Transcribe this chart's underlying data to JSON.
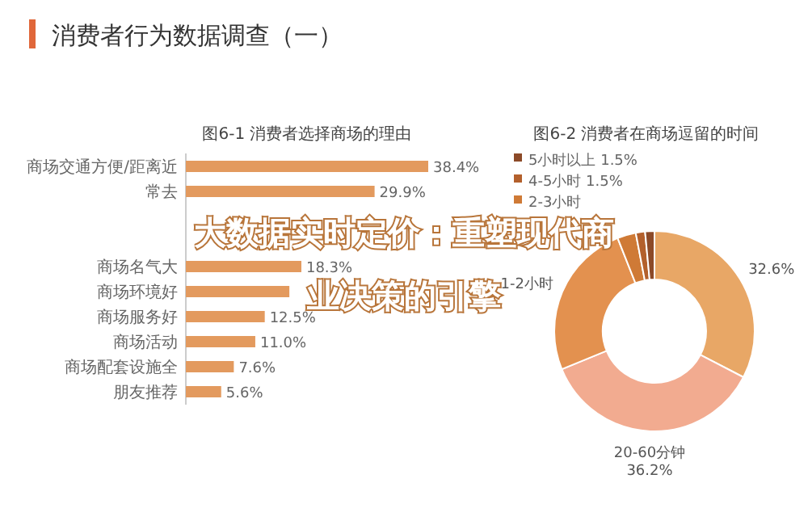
{
  "chart_data": [
    {
      "type": "bar",
      "orientation": "horizontal",
      "title": "图6-1 消费者选择商场的理由",
      "categories": [
        "商场交通方便/距离近",
        "常去",
        null,
        null,
        "商场名气大",
        "商场环境好",
        "商场服务好",
        "商场活动",
        "商场配套设施全",
        "朋友推荐"
      ],
      "values": [
        38.4,
        29.9,
        null,
        null,
        18.3,
        16.4,
        12.5,
        11.0,
        7.6,
        5.6
      ],
      "value_labels": [
        "38.4%",
        "29.9%",
        null,
        null,
        "18.3%",
        null,
        "12.5%",
        "11.0%",
        "7.6%",
        "5.6%"
      ],
      "color": "#e39a5e",
      "annotations": [
        "消费者行为数据调查（一）",
        "大数据实时定价：重塑现代商业决策的引擎"
      ]
    },
    {
      "type": "donut",
      "title": "图6-2 消费者在商场逗留的时间",
      "categories": [
        null,
        "20-60分钟",
        "1-2小时",
        "2-3小时",
        "4-5小时",
        "5小时以上"
      ],
      "values": [
        32.6,
        36.2,
        25.2,
        3.0,
        1.5,
        1.5
      ],
      "value_labels": [
        "32.6%",
        "36.2%",
        null,
        null,
        "1.5%",
        "1.5%"
      ],
      "colors": [
        "#e8a766",
        "#f2ab90",
        "#e3914f",
        "#cf7a36",
        "#b3602c",
        "#8c4a28"
      ],
      "legend": "top left"
    }
  ]
}
